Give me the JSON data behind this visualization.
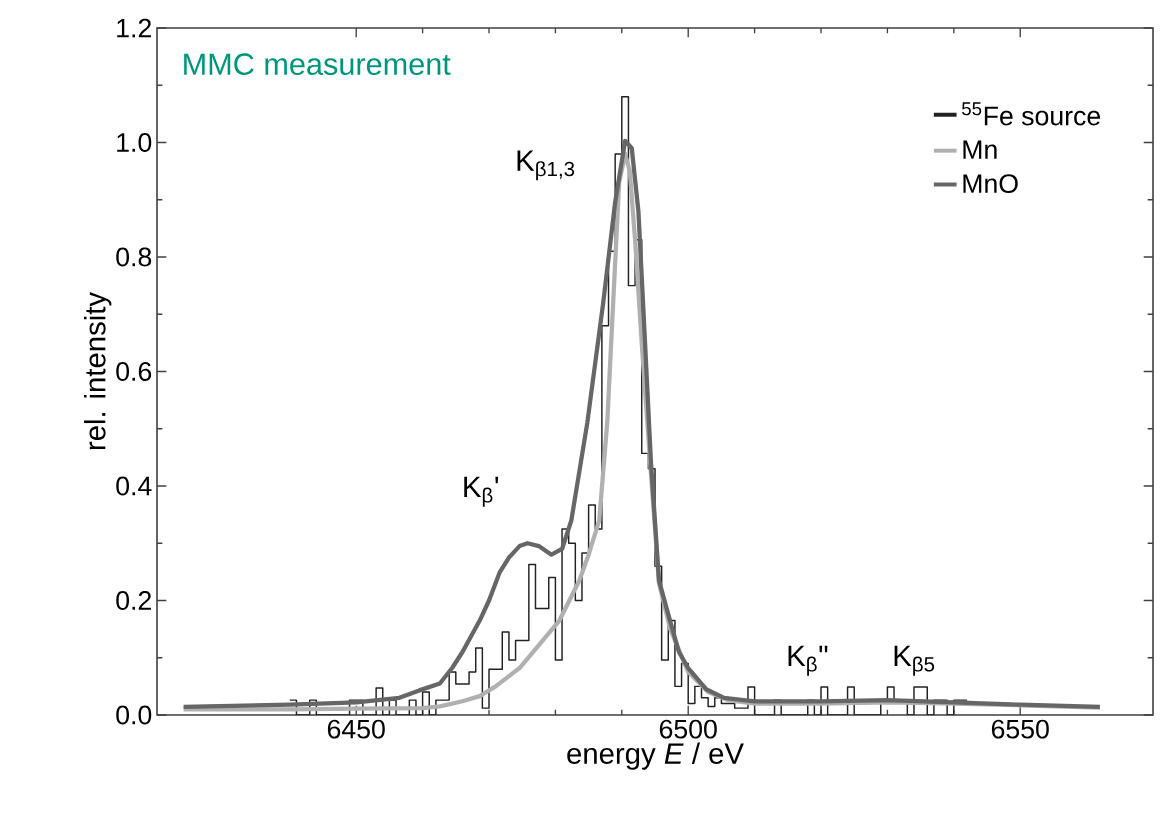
{
  "chart_data": {
    "type": "line",
    "xlabel": "energy *E* / eV",
    "ylabel": "rel. intensity",
    "xlim": [
      6420,
      6570
    ],
    "ylim": [
      0,
      1.2
    ],
    "xticks": [
      6450,
      6500,
      6550
    ],
    "yticks": [
      {
        "value": 0,
        "label": "0.0"
      },
      {
        "value": 0.2,
        "label": "0.2"
      },
      {
        "value": 0.4,
        "label": "0.4"
      },
      {
        "value": 0.6,
        "label": "0.6"
      },
      {
        "value": 0.8,
        "label": "0.8"
      },
      {
        "value": 1.0,
        "label": "1.0"
      },
      {
        "value": 1.2,
        "label": "1.2"
      }
    ],
    "legend": "top right",
    "grid": false,
    "annotations": [
      "MMC measurement",
      "K$_{β1,3}$",
      "K$_{β}$'",
      "K$_{β}$\"",
      "K$_{β5}$"
    ],
    "series": [
      {
        "name": "$^{55}$Fe source",
        "type": "step",
        "color": "#222222",
        "x": [
          6440,
          6441,
          6442,
          6443,
          6444,
          6445,
          6446,
          6447,
          6448,
          6449,
          6450,
          6451,
          6452,
          6453,
          6454,
          6455,
          6456,
          6457,
          6458,
          6459,
          6460,
          6461,
          6462,
          6463,
          6464,
          6465,
          6466,
          6467,
          6468,
          6469,
          6470,
          6471,
          6472,
          6473,
          6474,
          6475,
          6476,
          6477,
          6478,
          6479,
          6480,
          6481,
          6482,
          6483,
          6484,
          6485,
          6486,
          6487,
          6488,
          6489,
          6490,
          6491,
          6492,
          6493,
          6494,
          6495,
          6496,
          6497,
          6498,
          6499,
          6500,
          6501,
          6502,
          6503,
          6504,
          6505,
          6506,
          6507,
          6508,
          6509,
          6510,
          6511,
          6512,
          6513,
          6514,
          6515,
          6516,
          6517,
          6518,
          6519,
          6520,
          6521,
          6522,
          6523,
          6524,
          6525,
          6526,
          6527,
          6528,
          6529,
          6530,
          6531,
          6532,
          6533,
          6534,
          6535,
          6536,
          6537,
          6538,
          6539,
          6540,
          6541,
          6542
        ],
        "values": [
          0.026,
          0,
          0,
          0.026,
          0,
          0,
          0,
          0,
          0,
          0.026,
          0.026,
          0,
          0,
          0.047,
          0,
          0.026,
          0,
          0,
          0.026,
          0,
          0.04,
          0,
          0.026,
          0.026,
          0.075,
          0.054,
          0.054,
          0.075,
          0.117,
          0.012,
          0.08,
          0.08,
          0.145,
          0.096,
          0.13,
          0.13,
          0.263,
          0.186,
          0.186,
          0.24,
          0.096,
          0.325,
          0.3,
          0.2,
          0.283,
          0.367,
          0.325,
          0.68,
          0.81,
          0.98,
          1.08,
          0.75,
          0.83,
          0.457,
          0.43,
          0.26,
          0.096,
          0.165,
          0.05,
          0.09,
          0.02,
          0.05,
          0.03,
          0.015,
          0.03,
          0.02,
          0.02,
          0.012,
          0.012,
          0.049,
          0,
          0,
          0,
          0.026,
          0,
          0,
          0,
          0,
          0.026,
          0,
          0.049,
          0,
          0,
          0,
          0.049,
          0,
          0,
          0,
          0,
          0.026,
          0.049,
          0.026,
          0.026,
          0,
          0.049,
          0.049,
          0,
          0.026,
          0.026,
          0,
          0.026,
          0.026,
          0.026
        ]
      },
      {
        "name": "Mn",
        "color": "#b0b0b0",
        "x": [
          6424,
          6440,
          6450,
          6460,
          6462.6,
          6466,
          6468.6,
          6471,
          6474.6,
          6477,
          6480.6,
          6483.6,
          6485,
          6486.6,
          6487.8,
          6488.4,
          6489.6,
          6490.5,
          6491.2,
          6492,
          6493,
          6494.4,
          6495.6,
          6497.3,
          6500,
          6503,
          6506,
          6510,
          6520,
          6530,
          6540,
          6550,
          6562
        ],
        "values": [
          0.01,
          0.01,
          0.011,
          0.012,
          0.015,
          0.024,
          0.033,
          0.05,
          0.082,
          0.115,
          0.165,
          0.235,
          0.28,
          0.34,
          0.51,
          0.65,
          0.93,
          0.98,
          0.95,
          0.83,
          0.65,
          0.42,
          0.23,
          0.15,
          0.075,
          0.04,
          0.026,
          0.02,
          0.02,
          0.022,
          0.02,
          0.017,
          0.013
        ]
      },
      {
        "name": "MnO",
        "color": "#666666",
        "x": [
          6424,
          6440,
          6450,
          6456.5,
          6459.5,
          6462.6,
          6464.5,
          6466,
          6468.6,
          6470,
          6471.6,
          6473,
          6474.6,
          6475.8,
          6477.5,
          6479.4,
          6481,
          6482.4,
          6484.8,
          6487.2,
          6489,
          6490.5,
          6491.5,
          6492.5,
          6493.2,
          6494.4,
          6495.6,
          6497.3,
          6498.6,
          6500,
          6502.7,
          6505.4,
          6510,
          6520,
          6530,
          6540,
          6550,
          6562
        ],
        "values": [
          0.014,
          0.018,
          0.022,
          0.03,
          0.043,
          0.055,
          0.083,
          0.11,
          0.165,
          0.2,
          0.249,
          0.275,
          0.295,
          0.3,
          0.295,
          0.28,
          0.29,
          0.34,
          0.51,
          0.72,
          0.896,
          1.003,
          0.99,
          0.88,
          0.72,
          0.44,
          0.235,
          0.163,
          0.11,
          0.082,
          0.045,
          0.03,
          0.024,
          0.024,
          0.026,
          0.022,
          0.018,
          0.014
        ]
      }
    ]
  }
}
